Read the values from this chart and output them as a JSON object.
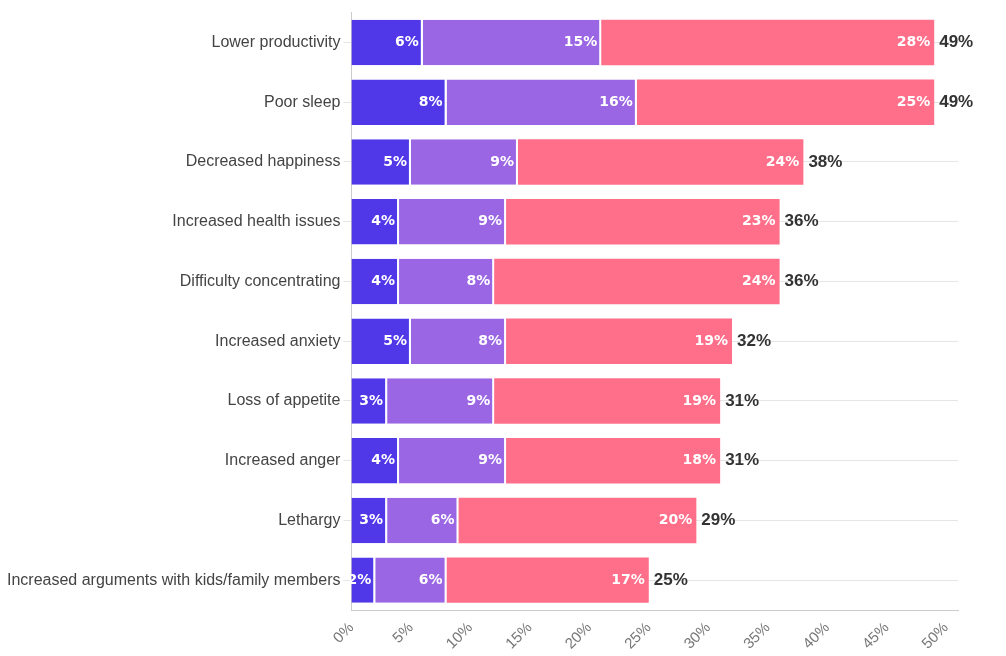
{
  "chart_data": {
    "type": "bar",
    "orientation": "horizontal",
    "stacked": true,
    "categories": [
      "Lower productivity",
      "Poor sleep",
      "Decreased happiness",
      "Increased health issues",
      "Difficulty concentrating",
      "Increased anxiety",
      "Loss of appetite",
      "Increased anger",
      "Lethargy",
      "Increased arguments with kids/family members"
    ],
    "series": [
      {
        "color": "#5038e8",
        "values": [
          6,
          8,
          5,
          4,
          4,
          5,
          3,
          4,
          3,
          2
        ],
        "value_labels": [
          "6%",
          "8%",
          "5%",
          "4%",
          "4%",
          "5%",
          "3%",
          "4%",
          "3%",
          "2%"
        ]
      },
      {
        "color": "#9b66e4",
        "values": [
          15,
          16,
          9,
          9,
          8,
          8,
          9,
          9,
          6,
          6
        ],
        "value_labels": [
          "15%",
          "16%",
          "9%",
          "9%",
          "8%",
          "8%",
          "9%",
          "9%",
          "6%",
          "6%"
        ]
      },
      {
        "color": "#ff6f8a",
        "values": [
          28,
          25,
          24,
          23,
          24,
          19,
          19,
          18,
          20,
          17
        ],
        "value_labels": [
          "28%",
          "25%",
          "24%",
          "23%",
          "24%",
          "19%",
          "19%",
          "18%",
          "20%",
          "17%"
        ]
      }
    ],
    "totals": [
      "49%",
      "49%",
      "38%",
      "36%",
      "36%",
      "32%",
      "31%",
      "31%",
      "29%",
      "25%"
    ],
    "xlim": [
      0,
      51
    ],
    "xticks": [
      {
        "value": 0,
        "label": "0%"
      },
      {
        "value": 5,
        "label": "5%"
      },
      {
        "value": 10,
        "label": "10%"
      },
      {
        "value": 15,
        "label": "15%"
      },
      {
        "value": 20,
        "label": "20%"
      },
      {
        "value": 25,
        "label": "25%"
      },
      {
        "value": 30,
        "label": "30%"
      },
      {
        "value": 35,
        "label": "35%"
      },
      {
        "value": 40,
        "label": "40%"
      },
      {
        "value": 45,
        "label": "45%"
      },
      {
        "value": 50,
        "label": "50%"
      }
    ],
    "grid": "y",
    "legend": false
  }
}
